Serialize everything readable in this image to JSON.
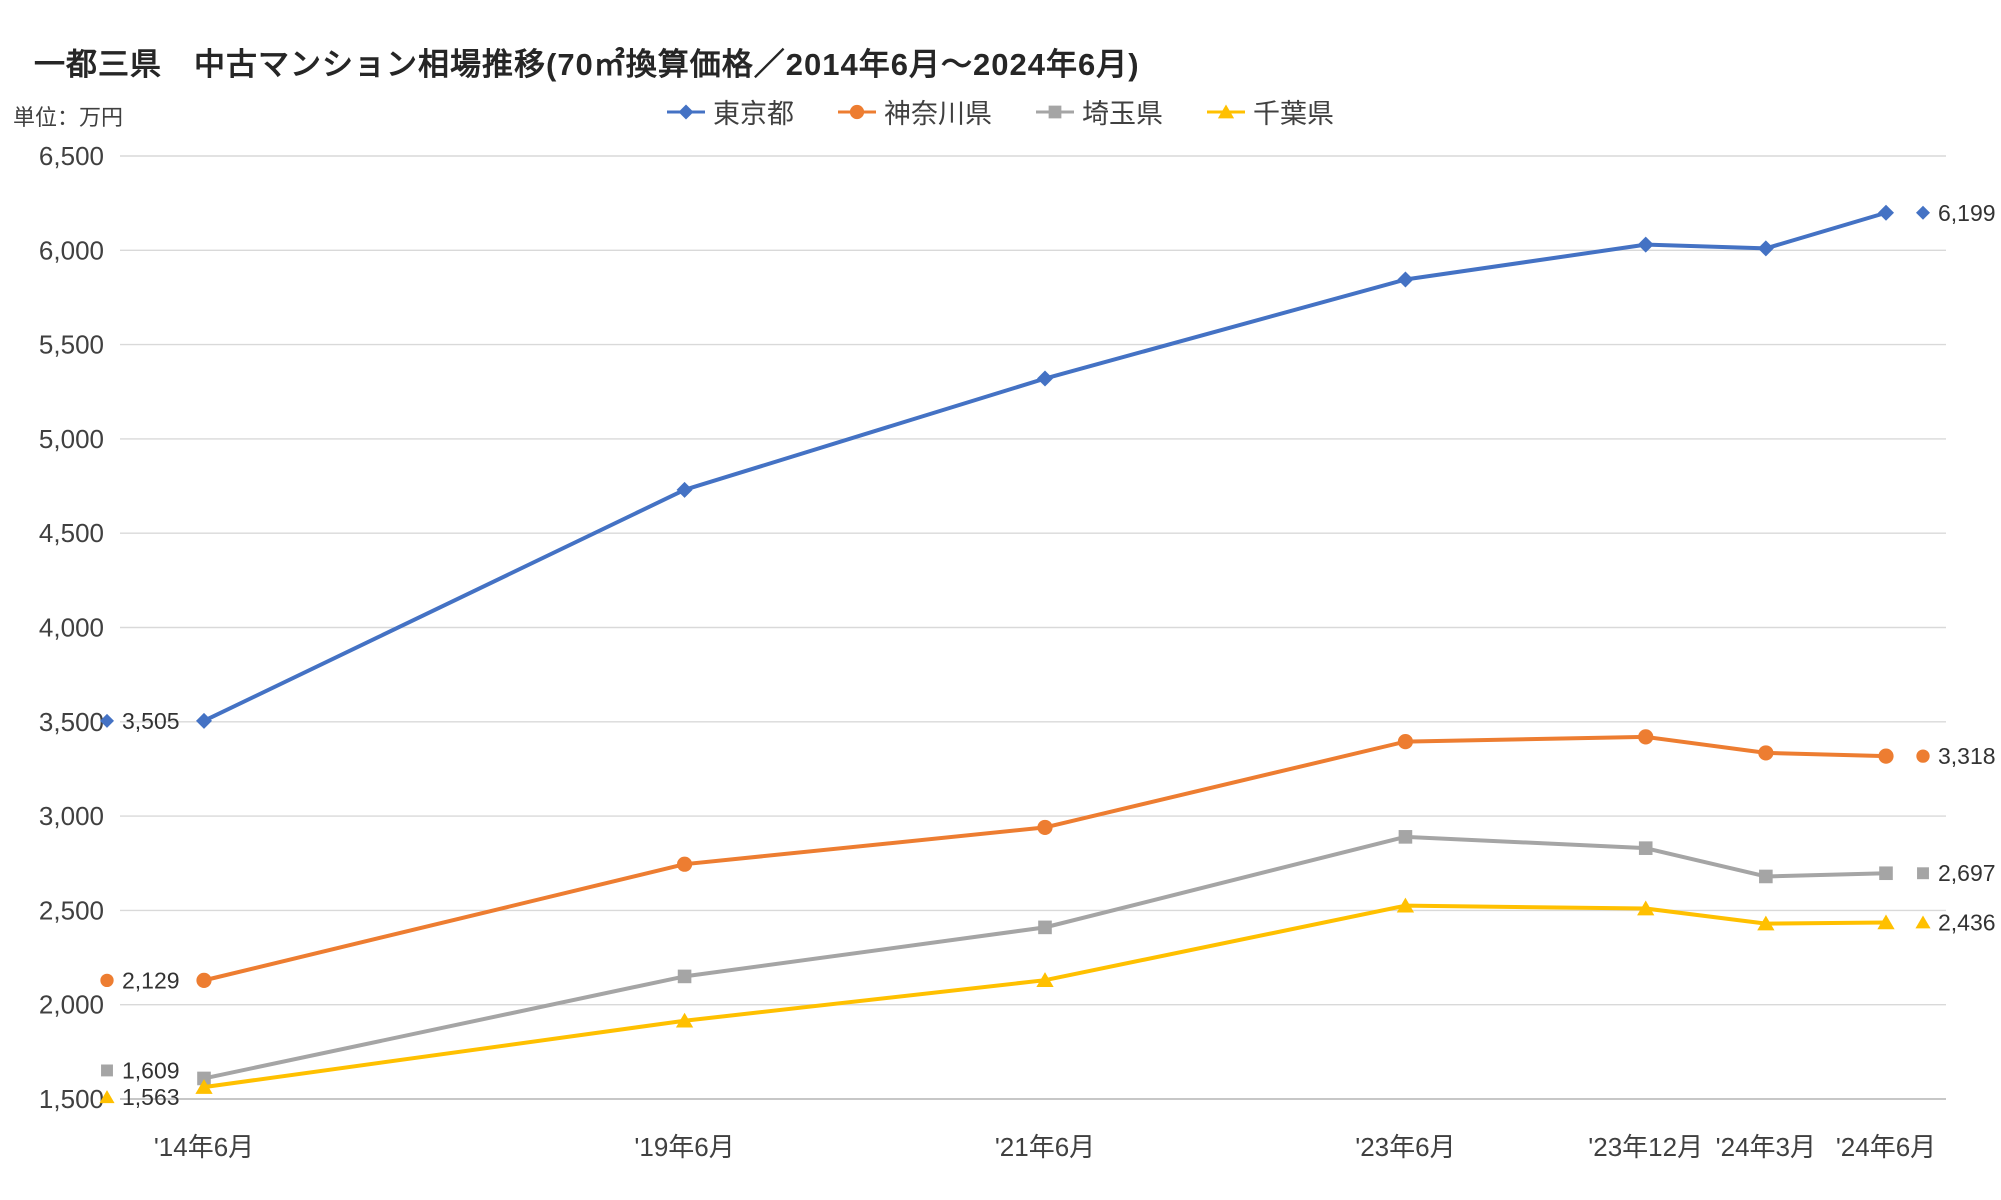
{
  "title": "一都三県　中古マンション相場推移(70㎡換算価格／2014年6月～2024年6月)",
  "unit_label": "単位：万円",
  "colors": {
    "grid": "#D9D9D9",
    "axis_line": "#BFBFBF",
    "axis_text": "#404040",
    "title_text": "#262626"
  },
  "chart_data": {
    "type": "line",
    "title": "一都三県　中古マンション相場推移(70㎡換算価格／2014年6月～2024年6月)",
    "ylabel": "単位：万円",
    "categories": [
      "'14年6月",
      "'19年6月",
      "'21年6月",
      "'23年6月",
      "'23年12月",
      "'24年3月",
      "'24年6月"
    ],
    "series": [
      {
        "name": "東京都",
        "color": "#4472C4",
        "marker": "diamond",
        "values": [
          3505,
          4730,
          5320,
          5845,
          6030,
          6010,
          6199
        ],
        "first_label": "3,505",
        "last_label": "6,199"
      },
      {
        "name": "神奈川県",
        "color": "#ED7D31",
        "marker": "circle",
        "values": [
          2129,
          2745,
          2940,
          3395,
          3420,
          3335,
          3318
        ],
        "first_label": "2,129",
        "last_label": "3,318"
      },
      {
        "name": "埼玉県",
        "color": "#A5A5A5",
        "marker": "square",
        "values": [
          1609,
          2150,
          2410,
          2890,
          2830,
          2680,
          2697
        ],
        "first_label": "1,609",
        "last_label": "2,697"
      },
      {
        "name": "千葉県",
        "color": "#FFC000",
        "marker": "triangle",
        "values": [
          1563,
          1915,
          2130,
          2525,
          2510,
          2430,
          2436
        ],
        "first_label": "1,563",
        "last_label": "2,436"
      }
    ],
    "ylim": [
      1500,
      6500
    ],
    "ytick_step": 500,
    "grid": true,
    "legend_position": "top",
    "layout": {
      "x_units": [
        0,
        4,
        7,
        10,
        12,
        13,
        14
      ],
      "first_label_dy": [
        0,
        0,
        -8,
        10
      ]
    }
  }
}
